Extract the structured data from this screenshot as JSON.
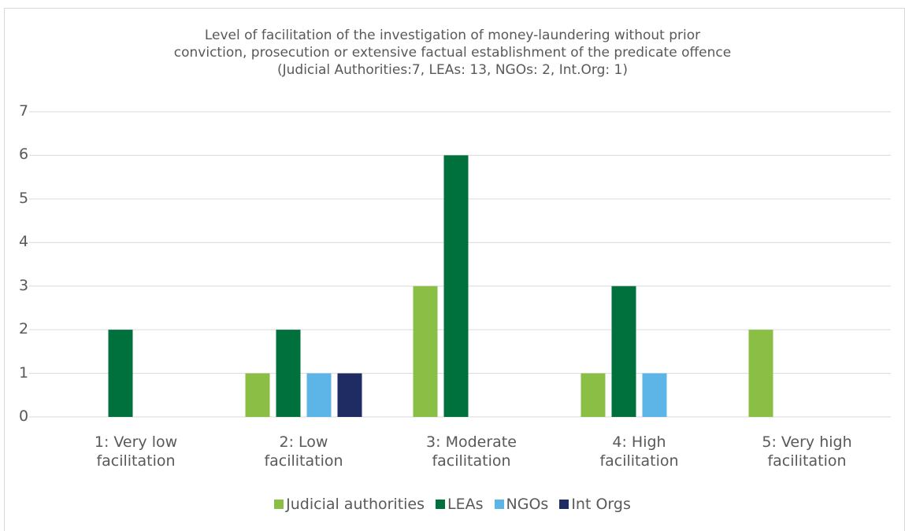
{
  "chart_data": {
    "type": "bar",
    "title": "Level of facilitation of the investigation of money-laundering without prior\nconviction, prosecution or extensive factual establishment of the predicate offence\n(Judicial Authorities:7, LEAs: 13, NGOs: 2, Int.Org: 1)",
    "categories": [
      "1: Very low\nfacilitation",
      "2: Low\nfacilitation",
      "3: Moderate\nfacilitation",
      "4: High\nfacilitation",
      "5: Very high\nfacilitation"
    ],
    "series": [
      {
        "name": "Judicial authorities",
        "color": "#8bbe45",
        "values": [
          0,
          1,
          3,
          1,
          2
        ]
      },
      {
        "name": "LEAs",
        "color": "#00703c",
        "values": [
          2,
          2,
          6,
          3,
          0
        ]
      },
      {
        "name": "NGOs",
        "color": "#5db4e6",
        "values": [
          0,
          1,
          0,
          1,
          0
        ]
      },
      {
        "name": "Int Orgs",
        "color": "#1f2b63",
        "values": [
          0,
          1,
          0,
          0,
          0
        ]
      }
    ],
    "ylim": [
      0,
      7
    ],
    "yticks": [
      0,
      1,
      2,
      3,
      4,
      5,
      6,
      7
    ],
    "grid": true,
    "legend": "bottom"
  }
}
